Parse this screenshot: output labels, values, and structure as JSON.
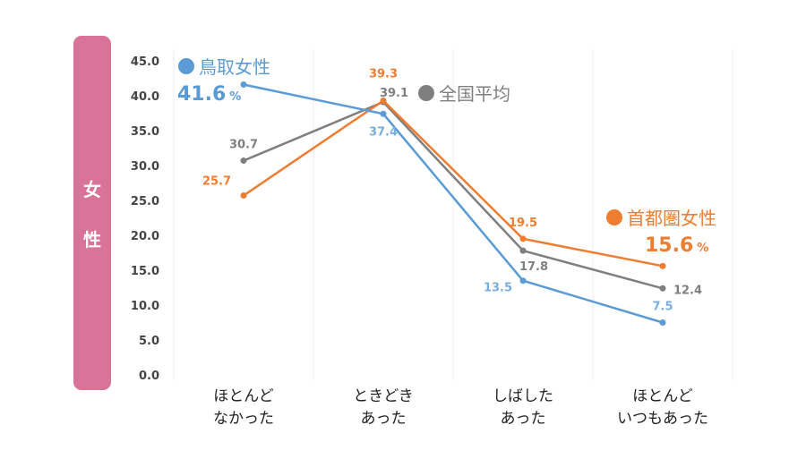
{
  "side_label": "女性",
  "colors": {
    "tottori": "#5b9bd5",
    "national": "#7f7f7f",
    "metro": "#ed7d31",
    "side_tab": "#d97498",
    "grid": "#eeeeee",
    "tottori_label": "#7aaee0"
  },
  "chart_data": {
    "type": "line",
    "categories": [
      [
        "ほとんど",
        "なかった"
      ],
      [
        "ときどき",
        "あった"
      ],
      [
        "しばした",
        "あった"
      ],
      [
        "ほとんど",
        "いつもあった"
      ]
    ],
    "ylim": [
      0,
      45
    ],
    "yticks": [
      "0.0",
      "5.0",
      "10.0",
      "15.0",
      "20.0",
      "25.0",
      "30.0",
      "35.0",
      "40.0",
      "45.0"
    ],
    "series": [
      {
        "name": "鳥取女性",
        "key": "tottori",
        "values": [
          41.6,
          37.4,
          13.5,
          7.5
        ],
        "labels": [
          "",
          "37.4",
          "13.5",
          "7.5"
        ]
      },
      {
        "name": "全国平均",
        "key": "national",
        "values": [
          30.7,
          39.1,
          17.8,
          12.4
        ],
        "labels": [
          "30.7",
          "39.1",
          "17.8",
          "12.4"
        ]
      },
      {
        "name": "首都圏女性",
        "key": "metro",
        "values": [
          25.7,
          39.3,
          19.5,
          15.6
        ],
        "labels": [
          "25.7",
          "39.3",
          "19.5",
          ""
        ]
      }
    ],
    "callouts": {
      "tottori": {
        "value": "41.6",
        "unit": "%"
      },
      "metro": {
        "value": "15.6",
        "unit": "%"
      }
    }
  }
}
